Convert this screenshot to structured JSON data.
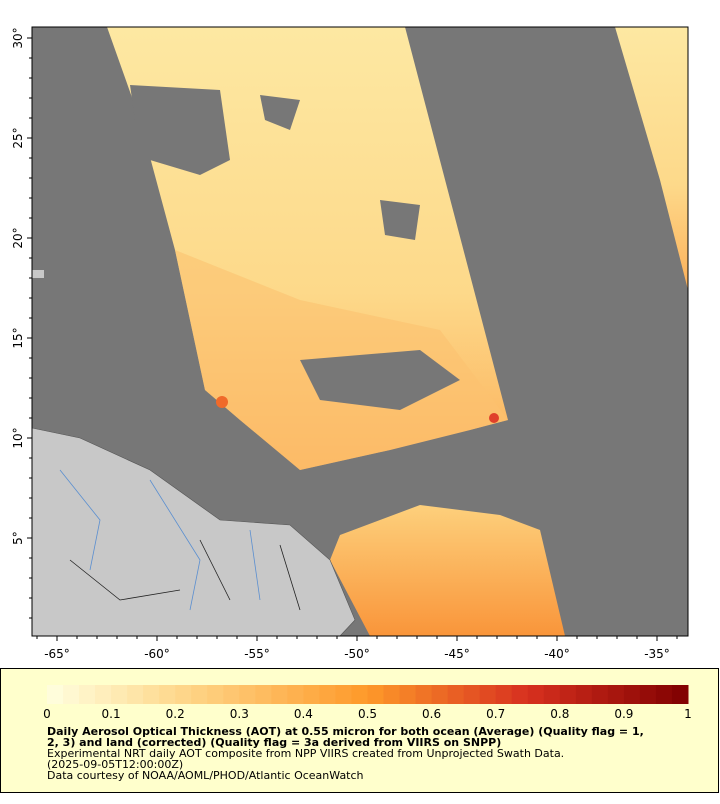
{
  "map": {
    "x_ticks": [
      "-65°",
      "-60°",
      "-55°",
      "-50°",
      "-45°",
      "-40°",
      "-35°"
    ],
    "y_ticks": [
      "30°",
      "25°",
      "20°",
      "15°",
      "10°",
      "5°"
    ]
  },
  "colorbar": {
    "ticks": [
      "0",
      "0.1",
      "0.2",
      "0.3",
      "0.4",
      "0.5",
      "0.6",
      "0.7",
      "0.8",
      "0.9",
      "1"
    ]
  },
  "caption": {
    "title_lines": [
      "Daily Aerosol Optical Thickness (AOT) at 0.55 micron for both ocean (Average) (Quality flag = 1,",
      "2, 3) and land (corrected) (Quality flag = 3a derived from VIIRS on SNPP)"
    ],
    "lines": [
      "Experimental NRT daily AOT composite from NPP VIIRS created from Unprojected Swath Data.",
      "(2025-09-05T12:00:00Z)",
      "Data courtesy of NOAA/AOML/PHOD/Atlantic OceanWatch"
    ]
  }
}
